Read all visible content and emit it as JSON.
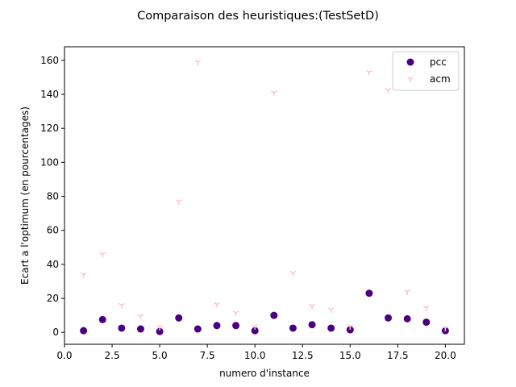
{
  "chart_data": {
    "type": "scatter",
    "title": "Comparaison des heuristiques:(TestSetD)",
    "xlabel": "numero d'instance",
    "ylabel": "Ecart a l'optimum (en pourcentages)",
    "xlim": [
      0,
      21
    ],
    "ylim": [
      -7,
      168
    ],
    "xticks": [
      0.0,
      2.5,
      5.0,
      7.5,
      10.0,
      12.5,
      15.0,
      17.5,
      20.0
    ],
    "xtick_labels": [
      "0.0",
      "2.5",
      "5.0",
      "7.5",
      "10.0",
      "12.5",
      "15.0",
      "17.5",
      "20.0"
    ],
    "yticks": [
      0,
      20,
      40,
      60,
      80,
      100,
      120,
      140,
      160
    ],
    "ytick_labels": [
      "0",
      "20",
      "40",
      "60",
      "80",
      "100",
      "120",
      "140",
      "160"
    ],
    "grid": false,
    "legend_position": "top-right",
    "series": [
      {
        "name": "pcc",
        "marker": "circle",
        "color": "#4b0082",
        "x": [
          1,
          2,
          3,
          4,
          5,
          6,
          7,
          8,
          9,
          10,
          11,
          12,
          13,
          14,
          15,
          16,
          17,
          18,
          19,
          20
        ],
        "y": [
          1,
          7.5,
          2.5,
          2,
          0.5,
          8.5,
          2,
          4,
          4,
          1,
          10,
          2.5,
          4.5,
          2.5,
          1.5,
          23,
          8.5,
          8,
          6,
          1
        ]
      },
      {
        "name": "acm",
        "marker": "tri_down",
        "color": "#ffc0cb",
        "x": [
          1,
          2,
          3,
          4,
          5,
          6,
          7,
          8,
          9,
          10,
          11,
          12,
          13,
          14,
          15,
          16,
          17,
          18,
          19,
          20
        ],
        "y": [
          34,
          46,
          16,
          9.5,
          3,
          77,
          159,
          16.5,
          11.5,
          3.5,
          141,
          35,
          15.5,
          13.5,
          3.5,
          153,
          142.5,
          24,
          14.5,
          2.5
        ]
      }
    ]
  }
}
